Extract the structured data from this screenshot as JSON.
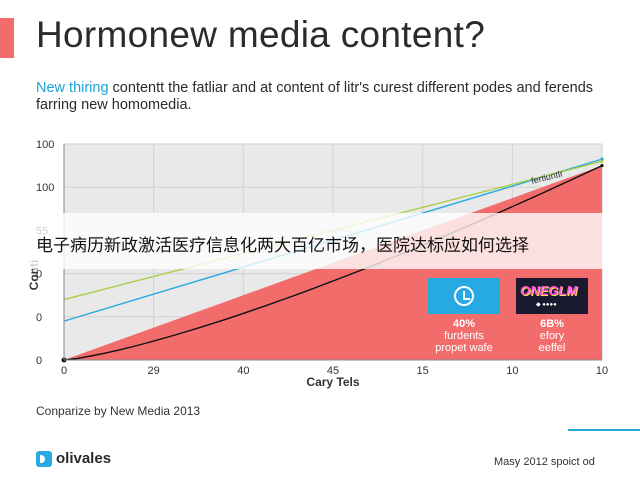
{
  "header": {
    "title": "Hormonew media content?",
    "subtitle_lead": "New thiring",
    "subtitle_rest": " contentt the fatliar and at content of litr's curest different podes and ferends farring new homomedia."
  },
  "banner": {
    "text": "电子病历新政激活医疗信息化两大百亿市场，医院达标应如何选择"
  },
  "cards": [
    {
      "icon": "clock-icon",
      "percent": "40%",
      "line1": "furdents",
      "line2": "propet wafe"
    },
    {
      "icon": "brand-logo",
      "logo_text": "ONEGLM",
      "logo_sub": "◆ ●●●●",
      "percent": "6B%",
      "line1": "efory",
      "line2": "eeffel"
    }
  ],
  "footer": {
    "footnote": "Conparize by New Media 2013",
    "brand": "olivales",
    "date": "Masy 2012 spoict od"
  },
  "colors": {
    "accent": "#f26c6c",
    "fill": "#f26c6c",
    "blue_line": "#27a9e1",
    "green_line": "#a8cf45",
    "black_line": "#111111",
    "plot_bg": "#e9e9e9"
  },
  "chart_data": {
    "type": "line",
    "title": "",
    "xlabel": "Cary Tels",
    "ylabel": "Conti",
    "x_ticks": [
      "0",
      "29",
      "40",
      "45",
      "15",
      "10",
      "10"
    ],
    "y_ticks": [
      "100",
      "100",
      "55",
      "0",
      "0",
      "0"
    ],
    "annotation": "fertiuntlr",
    "ylim": [
      0,
      100
    ],
    "grid": true,
    "series": [
      {
        "name": "",
        "color": "#f26c6c",
        "kind": "area",
        "points": [
          [
            0,
            0
          ],
          [
            1,
            90
          ]
        ]
      },
      {
        "name": "",
        "color": "#111111",
        "kind": "line",
        "points": [
          [
            0,
            0
          ],
          [
            1,
            90
          ]
        ],
        "curve": 1.3
      },
      {
        "name": "",
        "color": "#27a9e1",
        "kind": "line",
        "points": [
          [
            0,
            18
          ],
          [
            1,
            93
          ]
        ]
      },
      {
        "name": "",
        "color": "#a8cf45",
        "kind": "line",
        "points": [
          [
            0,
            28
          ],
          [
            1,
            92
          ]
        ]
      }
    ]
  }
}
